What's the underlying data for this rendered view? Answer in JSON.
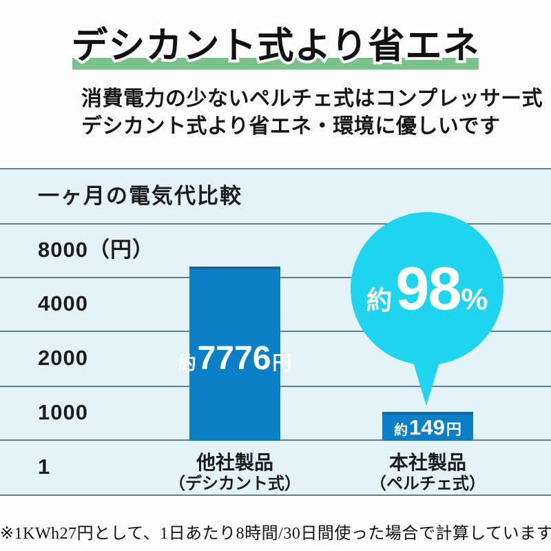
{
  "page": {
    "title": "デシカント式より省エネ",
    "subtitle_line1": "消費電力の少ないペルチェ式はコンプレッサー式",
    "subtitle_line2": "デシカント式より省エネ・環境に優しいです",
    "footnote": "※1KWh27円として、1日あたり8時間/30日間使った場合で計算しています。"
  },
  "chart": {
    "header": "一ヶ月の電気代比較",
    "y_labels": [
      "8000（円）",
      "4000",
      "2000",
      "1000",
      "1"
    ],
    "bars": [
      {
        "approx": "約",
        "value": "7776",
        "unit": "円",
        "name_line1": "他社製品",
        "name_line2": "（デシカント式）"
      },
      {
        "approx": "約",
        "value": "149",
        "unit": "円",
        "name_line1": "本社製品",
        "name_line2": "（ペルチェ式）"
      }
    ],
    "badge": {
      "approx": "約",
      "value": "98",
      "unit": "%"
    }
  },
  "colors": {
    "title_highlight": "#7cc08b",
    "row_bg": "#e4f3f7",
    "row_line": "#5e8090",
    "bar_blue": "#0b80c6",
    "badge_cyan": "#1ed4ee"
  },
  "chart_data": {
    "type": "bar",
    "title": "一ヶ月の電気代比較",
    "categories": [
      "他社製品（デシカント式）",
      "本社製品（ペルチェ式）"
    ],
    "values": [
      7776,
      149
    ],
    "value_labels": [
      "約7776円",
      "約149円"
    ],
    "unit": "円",
    "y_tick_labels": [
      "8000（円）",
      "4000",
      "2000",
      "1000",
      "1"
    ],
    "y_ticks": [
      8000,
      4000,
      2000,
      1000,
      1
    ],
    "annotations": [
      "約98%"
    ],
    "grid": true,
    "legend": false,
    "note": "※1KWh27円として、1日あたり8時間/30日間使った場合で計算しています。"
  }
}
